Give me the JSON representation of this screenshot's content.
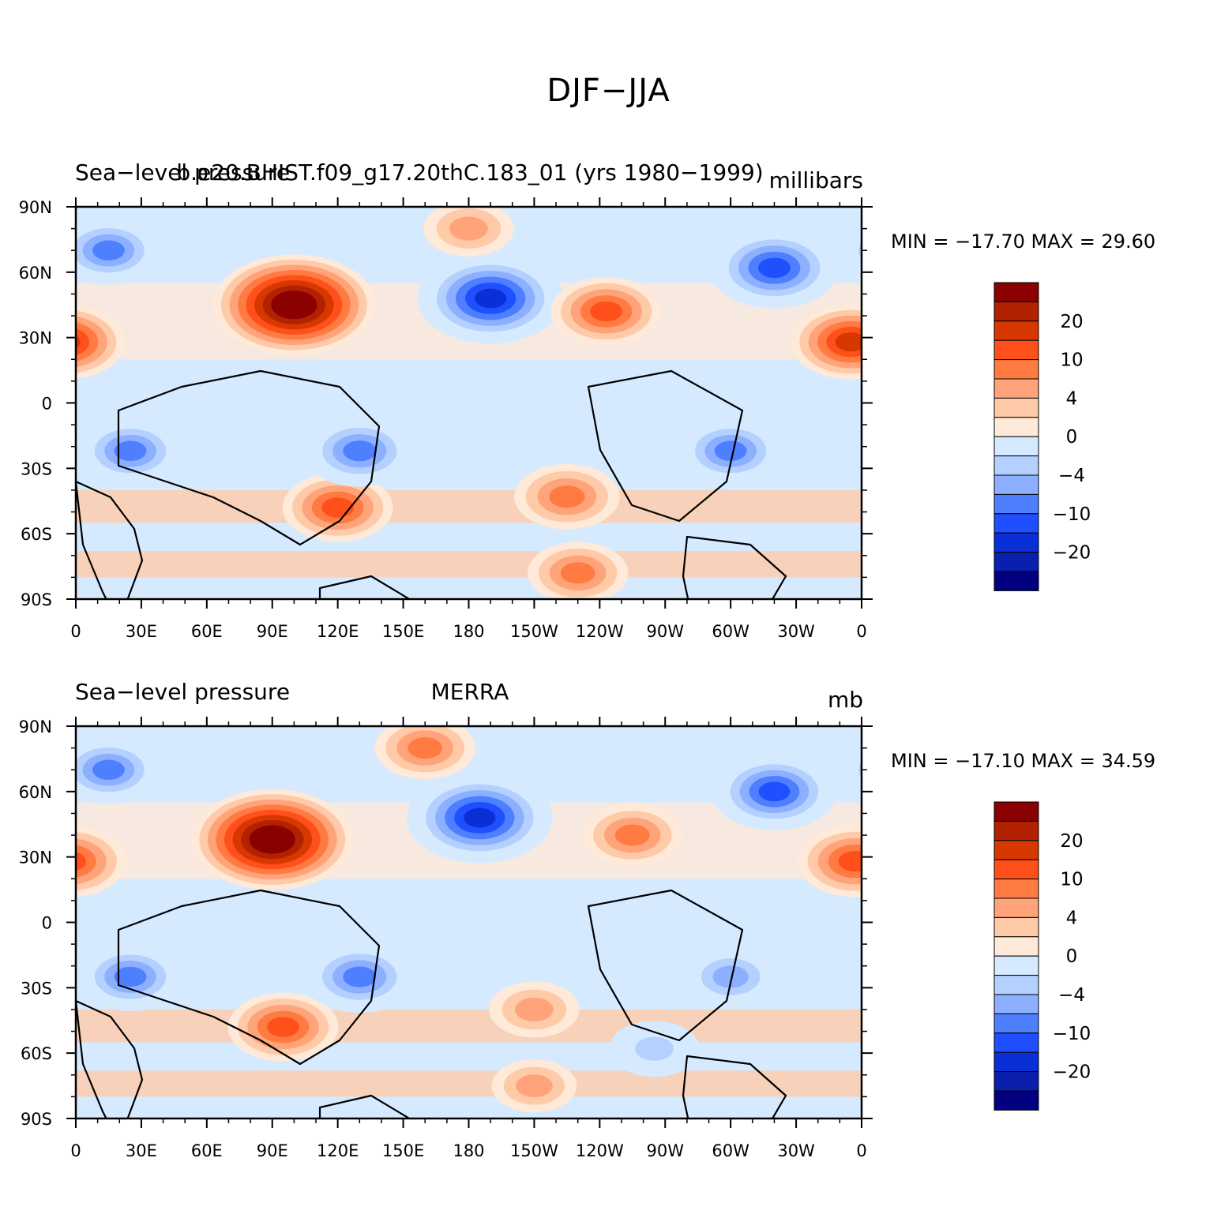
{
  "figure_title": "DJF−JJA",
  "colorbar": {
    "colors": [
      "#8b0000",
      "#b22200",
      "#d63800",
      "#ff4f1a",
      "#ff7b42",
      "#ffa47a",
      "#ffcaa8",
      "#ffe9d8",
      "#d6eaff",
      "#b4d0ff",
      "#8cb0ff",
      "#4d7fff",
      "#1f4fff",
      "#0a2fd6",
      "#0a1fb0",
      "#000080"
    ],
    "tick_labels": [
      {
        "label": "20",
        "after_box": 2
      },
      {
        "label": "10",
        "after_box": 4
      },
      {
        "label": "4",
        "after_box": 6
      },
      {
        "label": "0",
        "after_box": 8
      },
      {
        "label": "−4",
        "after_box": 10
      },
      {
        "label": "−10",
        "after_box": 12
      },
      {
        "label": "−20",
        "after_box": 14
      }
    ]
  },
  "x_ticks": [
    "0",
    "30E",
    "60E",
    "90E",
    "120E",
    "150E",
    "180",
    "150W",
    "120W",
    "90W",
    "60W",
    "30W",
    "0"
  ],
  "y_ticks": [
    "90N",
    "60N",
    "30N",
    "0",
    "30S",
    "60S",
    "90S"
  ],
  "panels": [
    {
      "left_title": "Sea−level pressure",
      "center_title": "b.e20.BHIST.f09_g17.20thC.183_01 (yrs 1980−1999)",
      "right_title": "millibars",
      "minmax": "MIN = −17.70  MAX =   29.60"
    },
    {
      "left_title": "Sea−level pressure",
      "center_title": "MERRA",
      "right_title": "mb",
      "minmax": "MIN = −17.10  MAX =   34.59"
    }
  ],
  "chart_data": [
    {
      "type": "heatmap",
      "title": "Sea−level pressure  b.e20.BHIST.f09_g17.20thC.183_01 (yrs 1980−1999)",
      "units": "millibars",
      "x": {
        "range": [
          0,
          360
        ],
        "ticks": [
          "0",
          "30E",
          "60E",
          "90E",
          "120E",
          "150E",
          "180",
          "150W",
          "120W",
          "90W",
          "60W",
          "30W",
          "0"
        ]
      },
      "y": {
        "range": [
          -90,
          90
        ],
        "ticks": [
          "90N",
          "60N",
          "30N",
          "0",
          "30S",
          "60S",
          "90S"
        ]
      },
      "contour_levels": [
        -24,
        -20,
        -16,
        -12,
        -10,
        -8,
        -4,
        -2,
        0,
        2,
        4,
        8,
        10,
        12,
        16,
        20,
        24
      ],
      "min": -17.7,
      "max": 29.6,
      "features": [
        {
          "name": "Siberian high",
          "lon": 100,
          "lat": 45,
          "value": 26
        },
        {
          "name": "Aleutian low",
          "lon": 190,
          "lat": 48,
          "value": -17
        },
        {
          "name": "Icelandic low",
          "lon": 320,
          "lat": 62,
          "value": -14
        },
        {
          "name": "Arctic Europe low",
          "lon": 15,
          "lat": 70,
          "value": -10
        },
        {
          "name": "North Africa high",
          "lon": 355,
          "lat": 28,
          "value": 12
        },
        {
          "name": "North American high",
          "lon": 243,
          "lat": 42,
          "value": 10
        },
        {
          "name": "Arctic Ocean high",
          "lon": 180,
          "lat": 80,
          "value": 6
        },
        {
          "name": "Indian Ocean subtropical high",
          "lon": 120,
          "lat": -48,
          "value": 10
        },
        {
          "name": "South Pacific subtropical high",
          "lon": 225,
          "lat": -43,
          "value": 9
        },
        {
          "name": "Southern Africa low",
          "lon": 25,
          "lat": -22,
          "value": -10
        },
        {
          "name": "Australia low",
          "lon": 130,
          "lat": -22,
          "value": -11
        },
        {
          "name": "South America low",
          "lon": 300,
          "lat": -22,
          "value": -10
        },
        {
          "name": "Antarctic coast high",
          "lon": 230,
          "lat": -78,
          "value": 8
        }
      ]
    },
    {
      "type": "heatmap",
      "title": "Sea−level pressure  MERRA",
      "units": "mb",
      "x": {
        "range": [
          0,
          360
        ],
        "ticks": [
          "0",
          "30E",
          "60E",
          "90E",
          "120E",
          "150E",
          "180",
          "150W",
          "120W",
          "90W",
          "60W",
          "30W",
          "0"
        ]
      },
      "y": {
        "range": [
          -90,
          90
        ],
        "ticks": [
          "90N",
          "60N",
          "30N",
          "0",
          "30S",
          "60S",
          "90S"
        ]
      },
      "contour_levels": [
        -24,
        -20,
        -16,
        -12,
        -10,
        -8,
        -4,
        -2,
        0,
        2,
        4,
        8,
        10,
        12,
        16,
        20,
        24
      ],
      "min": -17.1,
      "max": 34.59,
      "features": [
        {
          "name": "Siberian high",
          "lon": 90,
          "lat": 38,
          "value": 30
        },
        {
          "name": "Aleutian low",
          "lon": 185,
          "lat": 48,
          "value": -17
        },
        {
          "name": "Icelandic low",
          "lon": 320,
          "lat": 60,
          "value": -13
        },
        {
          "name": "Arctic Europe low",
          "lon": 15,
          "lat": 70,
          "value": -10
        },
        {
          "name": "North Africa high",
          "lon": 357,
          "lat": 28,
          "value": 11
        },
        {
          "name": "North American high",
          "lon": 255,
          "lat": 40,
          "value": 8
        },
        {
          "name": "Arctic Ocean high",
          "lon": 160,
          "lat": 80,
          "value": 8
        },
        {
          "name": "Indian Ocean subtropical high",
          "lon": 95,
          "lat": -48,
          "value": 10
        },
        {
          "name": "South Pacific subtropical high",
          "lon": 210,
          "lat": -40,
          "value": 6
        },
        {
          "name": "South Pacific low",
          "lon": 265,
          "lat": -58,
          "value": -6
        },
        {
          "name": "Southern Africa low",
          "lon": 25,
          "lat": -25,
          "value": -10
        },
        {
          "name": "Australia low",
          "lon": 130,
          "lat": -25,
          "value": -11
        },
        {
          "name": "South America low",
          "lon": 300,
          "lat": -25,
          "value": -9
        },
        {
          "name": "Antarctic coast high",
          "lon": 210,
          "lat": -75,
          "value": 5
        }
      ]
    }
  ]
}
